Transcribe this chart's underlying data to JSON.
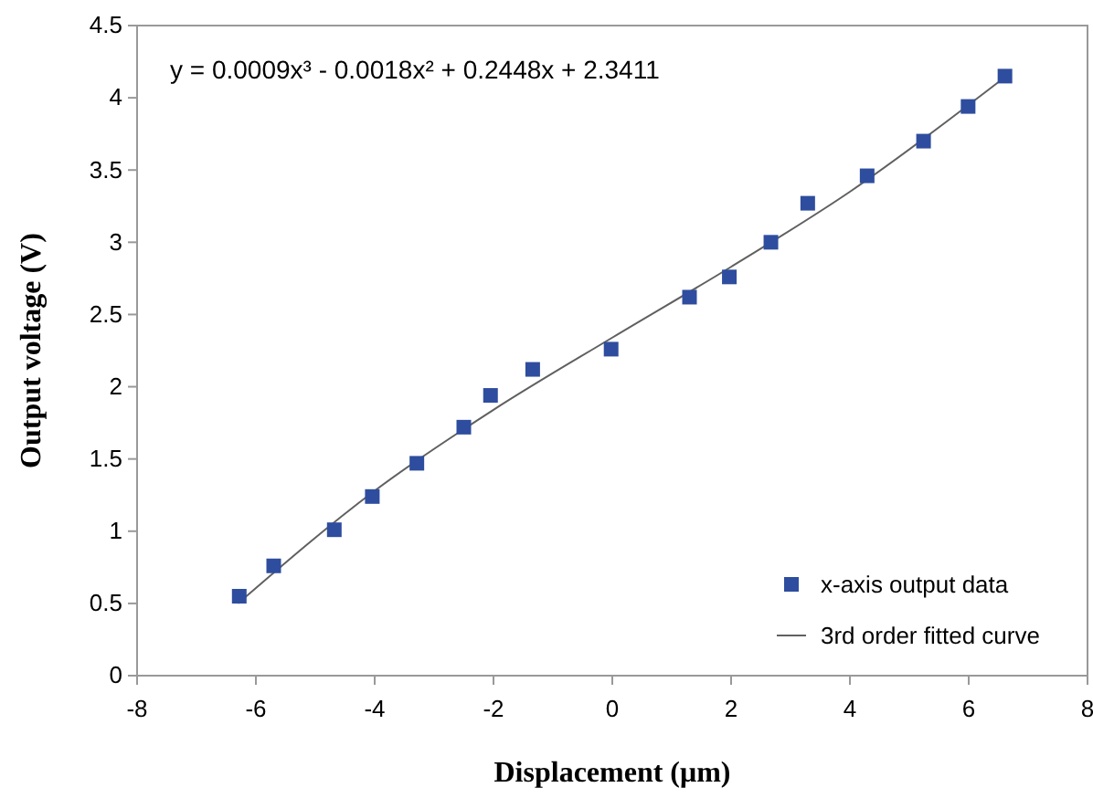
{
  "chart_data": {
    "type": "scatter",
    "xlabel": "Displacement (μm)",
    "ylabel": "Output voltage (V)",
    "xlim": [
      -8,
      8
    ],
    "xticks": [
      -8,
      -6,
      -4,
      -2,
      0,
      2,
      4,
      6,
      8
    ],
    "ylim": [
      0,
      4.5
    ],
    "yticks": [
      0,
      0.5,
      1,
      1.5,
      2,
      2.5,
      3,
      3.5,
      4,
      4.5
    ],
    "grid": false,
    "legend": "bottom right",
    "annotations": [
      {
        "text": "y = 0.0009x³ - 0.0018x² + 0.2448x + 2.3411"
      }
    ],
    "series": [
      {
        "name": "x-axis output data",
        "marker": "square",
        "color": "#2e4d9e",
        "x": [
          -6.28,
          -5.7,
          -4.68,
          -4.04,
          -3.29,
          -2.5,
          -2.05,
          -1.34,
          -0.02,
          1.3,
          1.97,
          2.67,
          3.29,
          4.29,
          5.24,
          5.99,
          6.61
        ],
        "values": [
          0.55,
          0.76,
          1.01,
          1.24,
          1.47,
          1.72,
          1.94,
          2.12,
          2.26,
          2.62,
          2.76,
          3.0,
          3.27,
          3.46,
          3.7,
          3.94,
          4.15
        ]
      },
      {
        "name": "3rd order fitted curve",
        "type": "line",
        "color": "#606060",
        "x": [
          -6.3,
          -4,
          -2,
          0,
          2,
          4,
          6.6
        ],
        "values": [
          0.5,
          1.28,
          1.84,
          2.34,
          2.83,
          3.35,
          4.14
        ]
      }
    ]
  }
}
